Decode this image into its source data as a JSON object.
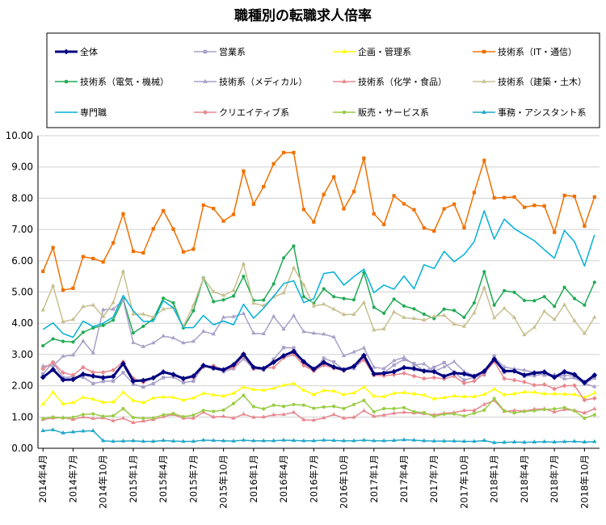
{
  "chart_data": {
    "type": "line",
    "title": "職種別の転職求人倍率",
    "xlabel": "",
    "ylabel": "",
    "ylim": [
      0,
      10
    ],
    "y_ticks": [
      "0.00",
      "1.00",
      "2.00",
      "3.00",
      "4.00",
      "5.00",
      "6.00",
      "7.00",
      "8.00",
      "9.00",
      "10.00"
    ],
    "grid": true,
    "legend_position": "top",
    "x": [
      "2014年4月",
      "2014年5月",
      "2014年6月",
      "2014年7月",
      "2014年8月",
      "2014年9月",
      "2014年10月",
      "2014年11月",
      "2014年12月",
      "2015年1月",
      "2015年2月",
      "2015年3月",
      "2015年4月",
      "2015年5月",
      "2015年6月",
      "2015年7月",
      "2015年8月",
      "2015年9月",
      "2015年10月",
      "2015年11月",
      "2015年12月",
      "2016年1月",
      "2016年2月",
      "2016年3月",
      "2016年4月",
      "2016年5月",
      "2016年6月",
      "2016年7月",
      "2016年8月",
      "2016年9月",
      "2016年10月",
      "2016年11月",
      "2016年12月",
      "2017年1月",
      "2017年2月",
      "2017年3月",
      "2017年4月",
      "2017年5月",
      "2017年6月",
      "2017年7月",
      "2017年8月",
      "2017年9月",
      "2017年10月",
      "2017年11月",
      "2017年12月",
      "2018年1月",
      "2018年2月",
      "2018年3月",
      "2018年4月",
      "2018年5月",
      "2018年6月",
      "2018年7月",
      "2018年8月",
      "2018年9月",
      "2018年10月",
      "2018年11月"
    ],
    "x_tick_labels": [
      "2014年4月",
      "2014年7月",
      "2014年10月",
      "2015年1月",
      "2015年4月",
      "2015年7月",
      "2015年10月",
      "2016年1月",
      "2016年4月",
      "2016年7月",
      "2016年10月",
      "2017年1月",
      "2017年4月",
      "2017年7月",
      "2017年10月",
      "2018年1月",
      "2018年4月",
      "2018年7月",
      "2018年10月"
    ],
    "series": [
      {
        "name": "全体",
        "color": "#000080",
        "marker": "diamond",
        "width": 3,
        "values": [
          2.27,
          2.52,
          2.19,
          2.2,
          2.37,
          2.31,
          2.26,
          2.3,
          2.71,
          2.15,
          2.17,
          2.25,
          2.44,
          2.36,
          2.23,
          2.31,
          2.65,
          2.57,
          2.51,
          2.67,
          3.01,
          2.59,
          2.55,
          2.75,
          2.96,
          3.1,
          2.77,
          2.53,
          2.75,
          2.6,
          2.51,
          2.62,
          2.97,
          2.38,
          2.4,
          2.45,
          2.58,
          2.55,
          2.47,
          2.45,
          2.3,
          2.41,
          2.38,
          2.3,
          2.46,
          2.85,
          2.47,
          2.47,
          2.34,
          2.41,
          2.44,
          2.27,
          2.45,
          2.36,
          2.1,
          2.34
        ]
      },
      {
        "name": "営業系",
        "color": "#a9a0c8",
        "marker": "square",
        "width": 1.5,
        "values": [
          2.38,
          2.75,
          2.26,
          2.29,
          2.27,
          2.07,
          2.14,
          2.15,
          2.42,
          2.05,
          1.96,
          2.07,
          2.26,
          2.28,
          2.1,
          2.15,
          2.64,
          2.55,
          2.45,
          2.55,
          2.86,
          2.55,
          2.5,
          2.85,
          3.22,
          3.21,
          2.72,
          2.48,
          2.88,
          2.76,
          2.51,
          2.55,
          2.85,
          2.34,
          2.41,
          2.66,
          2.84,
          2.71,
          2.48,
          2.59,
          2.74,
          2.43,
          2.18,
          2.27,
          2.35,
          2.95,
          2.43,
          2.48,
          2.31,
          2.32,
          2.38,
          2.27,
          2.34,
          2.3,
          2.06,
          2.25
        ]
      },
      {
        "name": "企画・管理系",
        "color": "#ffff00",
        "marker": "triangle",
        "width": 1.5,
        "values": [
          1.41,
          1.79,
          1.42,
          1.46,
          1.63,
          1.57,
          1.47,
          1.48,
          1.79,
          1.53,
          1.46,
          1.61,
          1.64,
          1.63,
          1.54,
          1.61,
          1.76,
          1.71,
          1.67,
          1.76,
          1.96,
          1.88,
          1.86,
          1.92,
          2.02,
          2.07,
          1.86,
          1.72,
          1.85,
          1.83,
          1.72,
          1.77,
          1.96,
          1.67,
          1.65,
          1.76,
          1.78,
          1.74,
          1.7,
          1.58,
          1.62,
          1.67,
          1.65,
          1.65,
          1.72,
          1.89,
          1.71,
          1.74,
          1.8,
          1.79,
          1.74,
          1.74,
          1.73,
          1.72,
          1.62,
          1.77
        ]
      },
      {
        "name": "技術系（IT・通信）",
        "color": "#f07000",
        "marker": "square",
        "width": 1.5,
        "values": [
          5.66,
          6.42,
          5.06,
          5.12,
          6.13,
          6.07,
          5.96,
          6.57,
          7.5,
          6.3,
          6.25,
          7.02,
          7.6,
          7.01,
          6.28,
          6.37,
          7.78,
          7.67,
          7.27,
          7.48,
          8.87,
          7.81,
          8.37,
          9.1,
          9.46,
          9.46,
          7.64,
          7.24,
          8.12,
          8.68,
          7.66,
          8.21,
          9.28,
          7.5,
          7.16,
          8.08,
          7.82,
          7.63,
          7.05,
          6.95,
          7.66,
          7.81,
          7.05,
          8.18,
          9.21,
          8.01,
          8.02,
          8.04,
          7.71,
          7.77,
          7.75,
          6.91,
          8.09,
          8.06,
          7.11,
          8.04
        ]
      },
      {
        "name": "技術系（電気・機械）",
        "color": "#22aa55",
        "marker": "circle",
        "width": 1.5,
        "values": [
          3.28,
          3.5,
          3.42,
          3.4,
          3.71,
          3.85,
          3.93,
          4.1,
          4.77,
          3.69,
          3.9,
          4.14,
          4.8,
          4.65,
          3.85,
          4.4,
          5.45,
          4.69,
          4.75,
          4.87,
          5.5,
          4.73,
          4.74,
          5.26,
          6.09,
          6.47,
          4.85,
          4.64,
          5.1,
          4.85,
          4.79,
          4.75,
          5.62,
          4.51,
          4.32,
          4.77,
          4.55,
          4.46,
          4.29,
          4.15,
          4.45,
          4.41,
          4.19,
          4.65,
          5.65,
          4.58,
          5.04,
          4.99,
          4.73,
          4.72,
          4.85,
          4.54,
          5.15,
          4.79,
          4.58,
          5.31
        ]
      },
      {
        "name": "技術系（メディカル）",
        "color": "#a9a0c8",
        "marker": "triangle",
        "width": 1.5,
        "values": [
          2.63,
          2.64,
          2.94,
          2.98,
          3.43,
          3.05,
          4.43,
          4.45,
          4.74,
          3.38,
          3.25,
          3.37,
          3.59,
          3.53,
          3.37,
          3.42,
          3.74,
          3.65,
          4.19,
          4.21,
          4.31,
          3.68,
          3.66,
          4.22,
          3.81,
          4.24,
          3.73,
          3.68,
          3.65,
          3.56,
          2.96,
          3.08,
          3.21,
          2.59,
          2.55,
          2.8,
          2.91,
          2.67,
          2.7,
          2.46,
          2.6,
          2.77,
          2.46,
          2.32,
          2.49,
          2.91,
          2.6,
          2.54,
          2.5,
          2.43,
          2.33,
          2.36,
          2.22,
          2.25,
          2.07,
          1.97
        ]
      },
      {
        "name": "技術系（化学・食品）",
        "color": "#e88890",
        "marker": "triangle",
        "width": 1.5,
        "values": [
          0.92,
          0.97,
          0.98,
          0.92,
          1.0,
          0.95,
          0.97,
          0.88,
          0.96,
          0.82,
          0.87,
          0.92,
          1.01,
          1.08,
          0.96,
          0.96,
          1.15,
          1.0,
          1.02,
          0.96,
          1.09,
          0.99,
          1.0,
          1.07,
          1.08,
          1.15,
          0.91,
          0.9,
          0.97,
          1.08,
          0.96,
          0.99,
          1.2,
          1.02,
          1.06,
          1.12,
          1.15,
          1.13,
          1.11,
          1.07,
          1.12,
          1.14,
          1.21,
          1.21,
          1.4,
          1.53,
          1.18,
          1.21,
          1.19,
          1.25,
          1.26,
          1.16,
          1.24,
          1.21,
          1.13,
          1.26
        ]
      },
      {
        "name": "技術系（建築・土木）",
        "color": "#c8c090",
        "marker": "triangle",
        "width": 1.5,
        "values": [
          4.42,
          5.2,
          4.05,
          4.12,
          4.53,
          4.58,
          4.21,
          4.66,
          5.66,
          4.29,
          4.29,
          4.19,
          4.45,
          4.5,
          3.9,
          4.57,
          5.45,
          5.01,
          4.89,
          5.05,
          5.9,
          4.64,
          4.56,
          4.84,
          4.97,
          5.77,
          5.23,
          4.55,
          4.61,
          4.45,
          4.28,
          4.28,
          4.66,
          3.78,
          3.82,
          4.36,
          4.18,
          4.15,
          4.1,
          4.22,
          4.25,
          3.97,
          3.9,
          4.33,
          5.14,
          4.17,
          4.48,
          4.18,
          3.63,
          3.87,
          4.38,
          4.12,
          4.59,
          4.08,
          3.67,
          4.19
        ]
      },
      {
        "name": "専門職",
        "color": "#00b0d8",
        "marker": "none",
        "width": 1.5,
        "values": [
          3.8,
          4.01,
          3.67,
          3.55,
          4.07,
          3.89,
          4.0,
          4.2,
          4.89,
          4.4,
          4.06,
          4.06,
          4.72,
          4.49,
          3.86,
          3.86,
          4.25,
          3.95,
          4.07,
          3.95,
          4.61,
          4.16,
          4.48,
          4.86,
          5.27,
          5.36,
          4.66,
          4.78,
          5.59,
          5.64,
          5.22,
          5.49,
          5.73,
          4.98,
          5.22,
          5.09,
          5.51,
          5.1,
          5.87,
          5.75,
          6.3,
          5.97,
          6.2,
          6.61,
          7.6,
          6.69,
          7.33,
          7.03,
          6.83,
          6.64,
          6.35,
          6.08,
          6.97,
          6.61,
          5.83,
          6.83
        ]
      },
      {
        "name": "クリエイティブ系",
        "color": "#e88890",
        "marker": "diamond",
        "width": 1.5,
        "values": [
          2.54,
          2.75,
          2.42,
          2.34,
          2.59,
          2.43,
          2.43,
          2.5,
          2.77,
          2.24,
          2.11,
          2.25,
          2.45,
          2.36,
          2.21,
          2.27,
          2.6,
          2.64,
          2.51,
          2.58,
          2.96,
          2.54,
          2.56,
          2.58,
          2.89,
          3.0,
          2.65,
          2.47,
          2.66,
          2.56,
          2.48,
          2.63,
          2.83,
          2.34,
          2.32,
          2.35,
          2.4,
          2.31,
          2.23,
          2.26,
          2.22,
          2.31,
          2.08,
          2.15,
          2.39,
          2.77,
          2.23,
          2.18,
          2.12,
          2.02,
          2.04,
          1.9,
          2.0,
          2.01,
          1.54,
          1.6
        ]
      },
      {
        "name": "販売・サービス系",
        "color": "#99cc44",
        "marker": "circle",
        "width": 1.5,
        "values": [
          0.95,
          1.0,
          0.97,
          0.99,
          1.08,
          1.1,
          1.02,
          1.04,
          1.27,
          0.98,
          0.96,
          0.97,
          1.07,
          1.11,
          1.01,
          1.06,
          1.21,
          1.18,
          1.22,
          1.43,
          1.69,
          1.33,
          1.26,
          1.38,
          1.34,
          1.4,
          1.38,
          1.28,
          1.32,
          1.34,
          1.27,
          1.4,
          1.53,
          1.17,
          1.27,
          1.27,
          1.3,
          1.17,
          1.14,
          1.02,
          1.09,
          1.1,
          1.03,
          1.12,
          1.22,
          1.59,
          1.2,
          1.13,
          1.18,
          1.2,
          1.24,
          1.26,
          1.3,
          1.2,
          0.96,
          1.07
        ]
      },
      {
        "name": "事務・アシスタント系",
        "color": "#20a8c8",
        "marker": "triangle",
        "width": 1.5,
        "values": [
          0.56,
          0.59,
          0.49,
          0.52,
          0.55,
          0.56,
          0.24,
          0.22,
          0.23,
          0.24,
          0.22,
          0.22,
          0.25,
          0.23,
          0.22,
          0.22,
          0.26,
          0.25,
          0.24,
          0.23,
          0.26,
          0.24,
          0.24,
          0.24,
          0.26,
          0.25,
          0.24,
          0.24,
          0.26,
          0.25,
          0.24,
          0.24,
          0.26,
          0.24,
          0.24,
          0.25,
          0.27,
          0.26,
          0.24,
          0.23,
          0.23,
          0.23,
          0.22,
          0.22,
          0.25,
          0.18,
          0.19,
          0.2,
          0.19,
          0.2,
          0.21,
          0.2,
          0.21,
          0.22,
          0.2,
          0.21
        ]
      }
    ]
  }
}
